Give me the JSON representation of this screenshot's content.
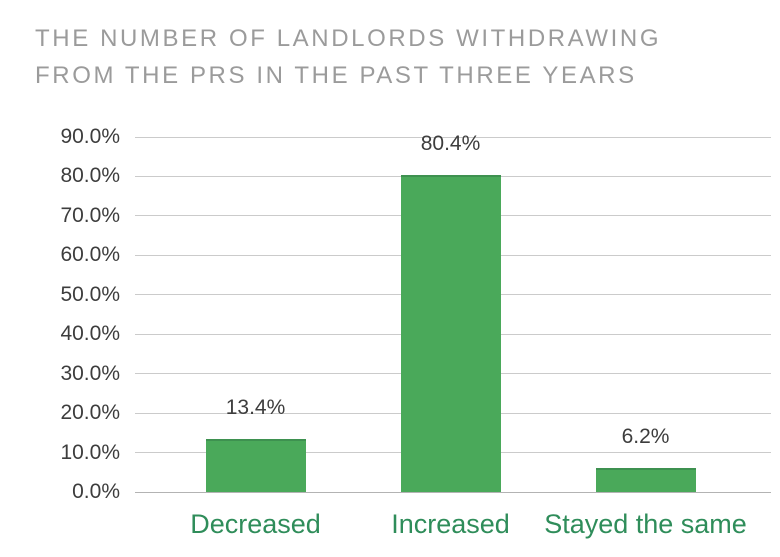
{
  "title": {
    "line1": "THE NUMBER OF LANDLORDS WITHDRAWING",
    "line2": "FROM THE PRS IN THE PAST THREE YEARS"
  },
  "chart_data": {
    "type": "bar",
    "title": "THE NUMBER OF LANDLORDS WITHDRAWING FROM THE PRS IN THE PAST THREE YEARS",
    "categories": [
      "Decreased",
      "Increased",
      "Stayed the same"
    ],
    "values": [
      13.4,
      80.4,
      6.2
    ],
    "data_labels": [
      "13.4%",
      "80.4%",
      "6.2%"
    ],
    "xlabel": "",
    "ylabel": "",
    "ylim": [
      0,
      90
    ],
    "ytick_step": 10,
    "ytick_labels": [
      "0.0%",
      "10.0%",
      "20.0%",
      "30.0%",
      "40.0%",
      "50.0%",
      "60.0%",
      "70.0%",
      "80.0%",
      "90.0%"
    ],
    "grid": "horizontal",
    "legend": "none",
    "colors": {
      "bar": "#4aa95a",
      "bar_top_edge": "#3e9150",
      "category_label": "#2f8d5a",
      "tick_label": "#3d3d3d",
      "data_label": "#3d3d3d",
      "gridline": "#cbcbcb",
      "axis_line": "#b3b3b3",
      "title": "#9b9b9b"
    }
  }
}
